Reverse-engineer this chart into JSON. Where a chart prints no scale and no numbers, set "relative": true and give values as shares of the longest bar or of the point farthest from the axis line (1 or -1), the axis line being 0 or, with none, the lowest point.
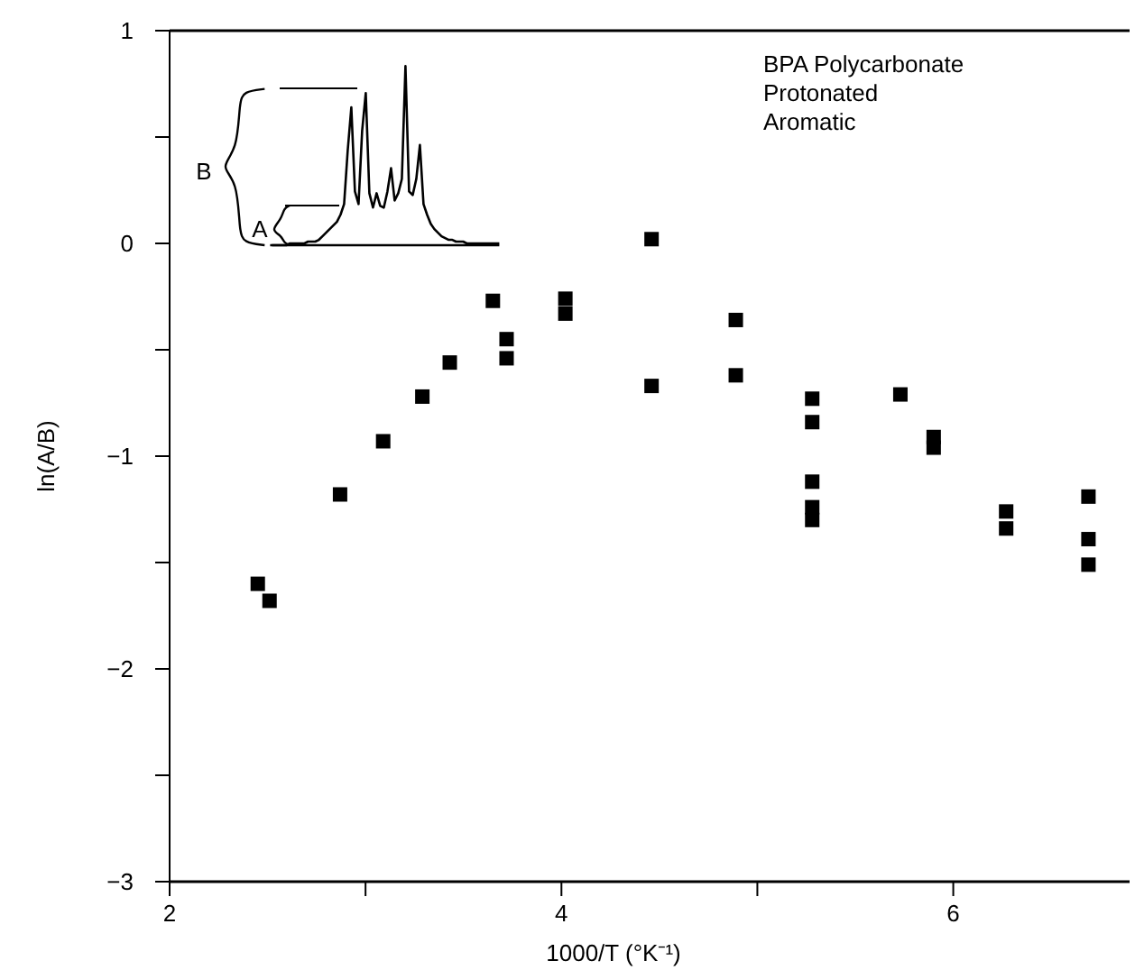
{
  "chart_data": [
    {
      "type": "scatter",
      "title": "BPA Polycarbonate\nProtonated\nAromatic",
      "xlabel": "1000/T (°K⁻¹)",
      "ylabel": "ln(A/B)",
      "marker": "square",
      "grid": false,
      "xlim": [
        2,
        6.9
      ],
      "xticks": [
        2,
        {
          "value": 3,
          "label": null
        },
        4,
        {
          "value": 5,
          "label": null
        },
        6
      ],
      "ylim": [
        -3,
        1
      ],
      "yticks": [
        -3,
        {
          "value": -2.5,
          "label": null
        },
        -2,
        {
          "value": -1.5,
          "label": null
        },
        -1,
        {
          "value": -0.5,
          "label": null
        },
        0,
        {
          "value": 0.5,
          "label": null
        },
        1
      ],
      "series": [
        {
          "color": "#000000",
          "x": [
            2.45,
            2.51,
            2.87,
            3.09,
            3.29,
            3.43,
            3.65,
            3.72,
            3.72,
            4.02,
            4.02,
            4.46,
            4.46,
            4.89,
            4.89,
            5.28,
            5.28,
            5.28,
            5.28,
            5.28,
            5.73,
            5.9,
            5.9,
            6.27,
            6.27,
            6.69,
            6.69,
            6.69
          ],
          "values": [
            -1.6,
            -1.68,
            -1.18,
            -0.93,
            -0.72,
            -0.56,
            -0.27,
            -0.45,
            -0.54,
            -0.26,
            -0.33,
            0.02,
            -0.67,
            -0.36,
            -0.62,
            -0.73,
            -0.84,
            -1.12,
            -1.24,
            -1.3,
            -0.71,
            -0.91,
            -0.96,
            -1.26,
            -1.34,
            -1.19,
            -1.39,
            -1.51
          ]
        }
      ]
    },
    {
      "type": "line",
      "relative": true,
      "annotations": [
        "B",
        "A"
      ],
      "categories": [
        null,
        null,
        null,
        null,
        null,
        null,
        null,
        null,
        null,
        null,
        null,
        null,
        null,
        null,
        null,
        null,
        null,
        null,
        null,
        null,
        null,
        null,
        null,
        null,
        null,
        null,
        null,
        null,
        null,
        null,
        null,
        null,
        null,
        null,
        null,
        null,
        null,
        null,
        null,
        null,
        null,
        null,
        null,
        null,
        null,
        null,
        null,
        null,
        null,
        null,
        null,
        null,
        null,
        null,
        null,
        null,
        null,
        null,
        null,
        null,
        null,
        null,
        null,
        null
      ],
      "series": [
        {
          "color": "#000000",
          "values": [
            0,
            0,
            0,
            0,
            0,
            0.01,
            0.01,
            0.01,
            0.01,
            0.01,
            0.02,
            0.02,
            0.02,
            0.03,
            0.05,
            0.07,
            0.09,
            0.11,
            0.13,
            0.17,
            0.23,
            0.53,
            0.77,
            0.3,
            0.23,
            0.64,
            0.85,
            0.29,
            0.21,
            0.29,
            0.22,
            0.21,
            0.3,
            0.43,
            0.25,
            0.29,
            0.37,
            1,
            0.3,
            0.28,
            0.37,
            0.56,
            0.23,
            0.17,
            0.12,
            0.09,
            0.07,
            0.05,
            0.04,
            0.03,
            0.03,
            0.02,
            0.02,
            0.02,
            0.01,
            0.01,
            0.01,
            0.01,
            0.01,
            0.01,
            0.01,
            0.01,
            0.01,
            0.01
          ]
        }
      ]
    }
  ]
}
